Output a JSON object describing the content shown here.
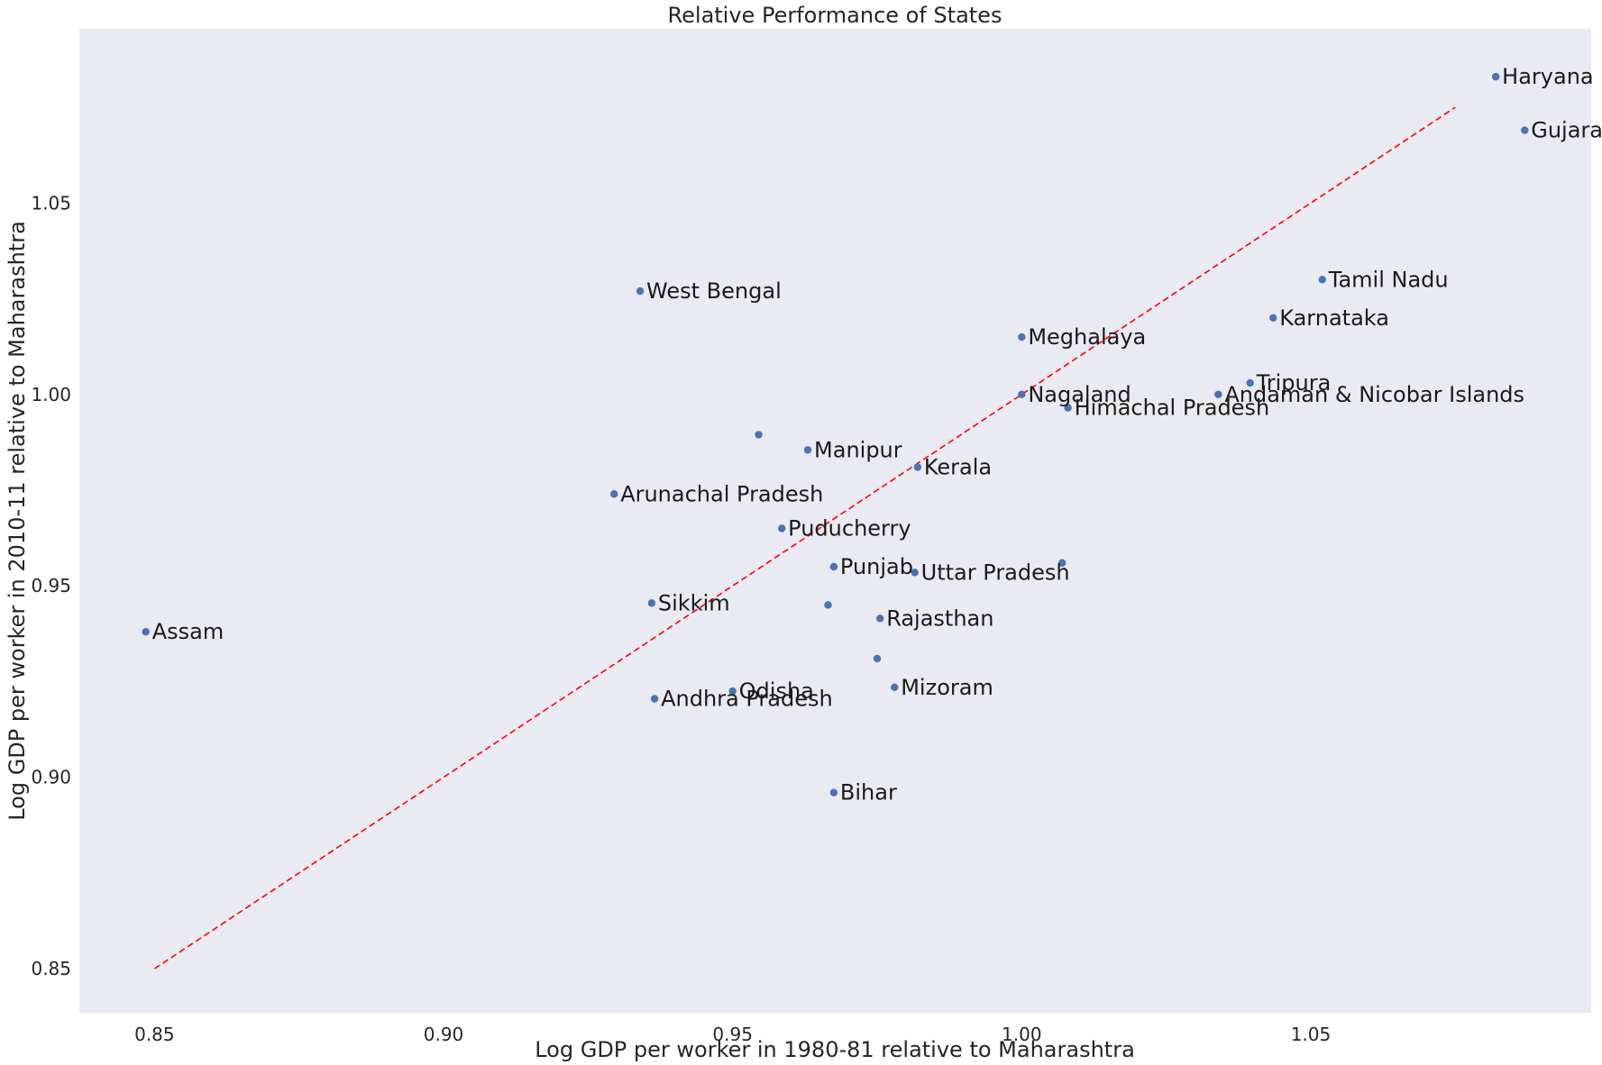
{
  "chart_data": {
    "type": "scatter",
    "title": "Relative Performance of States",
    "xlabel": "Log GDP per worker in 1980-81 relative to Maharashtra",
    "ylabel": "Log GDP per worker in 2010-11 relative to Maharashtra",
    "xlim": [
      0.837,
      1.0985
    ],
    "ylim": [
      0.8385,
      1.0955
    ],
    "xticks": [
      0.85,
      0.9,
      0.95,
      1.0,
      1.05
    ],
    "xtick_labels": [
      "0.85",
      "0.90",
      "0.95",
      "1.00",
      "1.05"
    ],
    "yticks": [
      0.85,
      0.9,
      0.95,
      1.0,
      1.05
    ],
    "ytick_labels": [
      "0.85",
      "0.90",
      "0.95",
      "1.00",
      "1.05"
    ],
    "grid": false,
    "background": "#eaeaf2",
    "point_color": "#4c72b0",
    "line_color": "#ff0000",
    "reference_line": {
      "style": "dashed",
      "x": [
        0.85,
        1.075
      ],
      "y": [
        0.85,
        1.075
      ]
    },
    "points": [
      {
        "label": "Haryana",
        "x": 1.082,
        "y": 1.083
      },
      {
        "label": "Gujarat",
        "x": 1.087,
        "y": 1.069
      },
      {
        "label": "Tamil Nadu",
        "x": 1.052,
        "y": 1.03
      },
      {
        "label": "Karnataka",
        "x": 1.0435,
        "y": 1.02
      },
      {
        "label": "West Bengal",
        "x": 0.934,
        "y": 1.027
      },
      {
        "label": "Meghalaya",
        "x": 1.0,
        "y": 1.015
      },
      {
        "label": "Tripura",
        "x": 1.0395,
        "y": 1.003
      },
      {
        "label": "Andaman & Nicobar Islands",
        "x": 1.034,
        "y": 1.0
      },
      {
        "label": "Nagaland",
        "x": 1.0,
        "y": 1.0
      },
      {
        "label": "Himachal Pradesh",
        "x": 1.008,
        "y": 0.9965
      },
      {
        "label": "",
        "x": 0.9545,
        "y": 0.9895
      },
      {
        "label": "Manipur",
        "x": 0.963,
        "y": 0.9855
      },
      {
        "label": "Kerala",
        "x": 0.982,
        "y": 0.981
      },
      {
        "label": "Arunachal Pradesh",
        "x": 0.9295,
        "y": 0.974
      },
      {
        "label": "Puducherry",
        "x": 0.9585,
        "y": 0.965
      },
      {
        "label": "Punjab",
        "x": 0.9675,
        "y": 0.955
      },
      {
        "label": "Uttar Pradesh",
        "x": 0.9815,
        "y": 0.9535
      },
      {
        "label": "",
        "x": 1.007,
        "y": 0.956
      },
      {
        "label": "Sikkim",
        "x": 0.936,
        "y": 0.9455
      },
      {
        "label": "",
        "x": 0.9665,
        "y": 0.945
      },
      {
        "label": "Rajasthan",
        "x": 0.9755,
        "y": 0.9415
      },
      {
        "label": "Assam",
        "x": 0.8485,
        "y": 0.938
      },
      {
        "label": "",
        "x": 0.975,
        "y": 0.931
      },
      {
        "label": "Mizoram",
        "x": 0.978,
        "y": 0.9235
      },
      {
        "label": "Odisha",
        "x": 0.95,
        "y": 0.9225
      },
      {
        "label": "Andhra Pradesh",
        "x": 0.9365,
        "y": 0.9205
      },
      {
        "label": "Bihar",
        "x": 0.9675,
        "y": 0.896
      }
    ]
  }
}
